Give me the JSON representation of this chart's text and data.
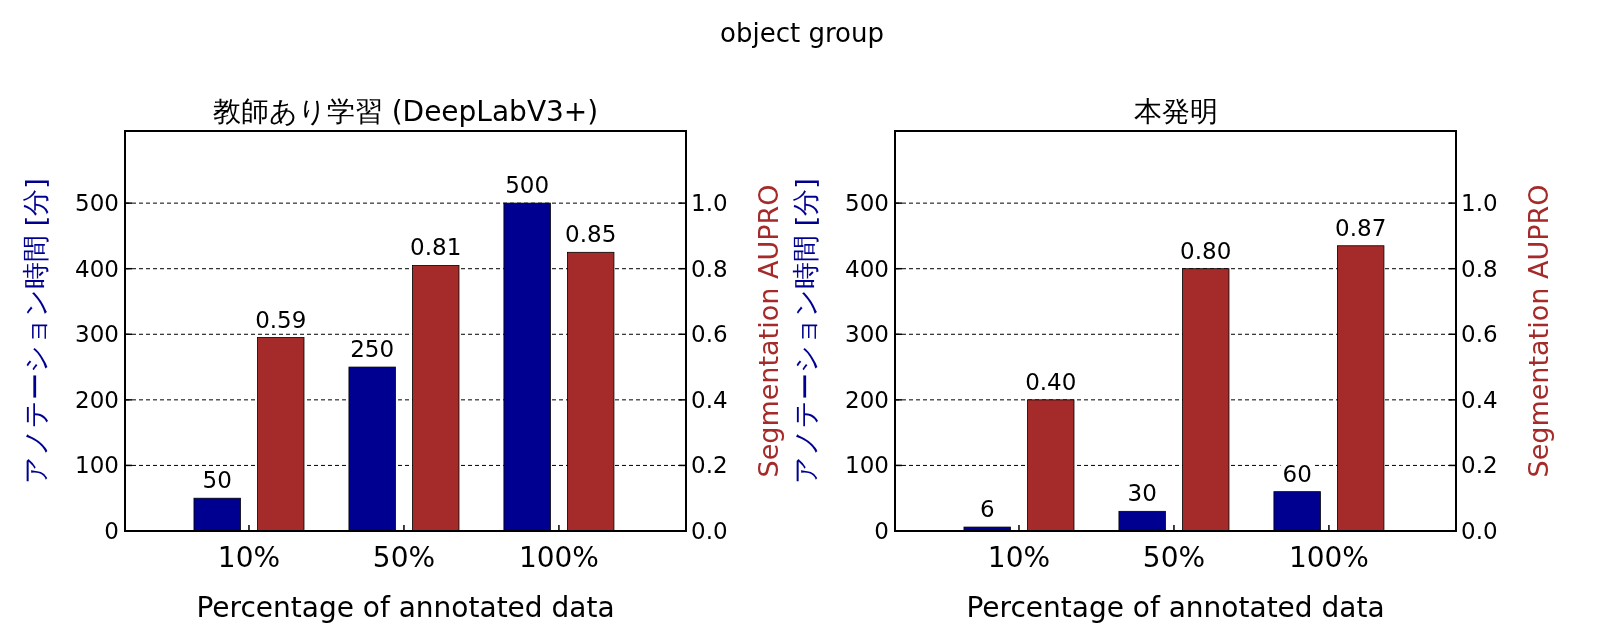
{
  "chart_data": [
    {
      "type": "bar",
      "title": "教師あり学習 (DeepLabV3+)",
      "annotations": [
        "object group"
      ],
      "xlabel": "Percentage of annotated data",
      "ylabel": "アノテーション時間 [分]",
      "y2label": "Segmentation AUPRO",
      "categories": [
        "10%",
        "50%",
        "100%"
      ],
      "series": [
        {
          "color": "#000090",
          "values": [
            50,
            250,
            500
          ],
          "value_labels": [
            "50",
            "250",
            "500"
          ]
        },
        {
          "color": "#a52a2a",
          "axis": "y2",
          "values": [
            0.59,
            0.81,
            0.85
          ],
          "value_labels": [
            "0.59",
            "0.81",
            "0.85"
          ]
        }
      ],
      "ylim": [
        0,
        610
      ],
      "yticks": [
        0,
        100,
        200,
        300,
        400,
        500
      ],
      "y2lim": [
        0,
        1.22
      ],
      "y2ticks": [
        {
          "value": 0,
          "label": "0.0"
        },
        {
          "value": 0.2,
          "label": "0.2"
        },
        {
          "value": 0.4,
          "label": "0.4"
        },
        {
          "value": 0.6,
          "label": "0.6"
        },
        {
          "value": 0.8,
          "label": "0.8"
        },
        {
          "value": 1,
          "label": "1.0"
        }
      ],
      "grid": "y"
    },
    {
      "type": "bar",
      "title": "本発明",
      "xlabel": "Percentage of annotated data",
      "ylabel": "アノテーション時間 [分]",
      "y2label": "Segmentation AUPRO",
      "categories": [
        "10%",
        "50%",
        "100%"
      ],
      "series": [
        {
          "color": "#000090",
          "values": [
            6,
            30,
            60
          ],
          "value_labels": [
            "6",
            "30",
            "60"
          ]
        },
        {
          "color": "#a52a2a",
          "axis": "y2",
          "values": [
            0.4,
            0.8,
            0.87
          ],
          "value_labels": [
            "0.40",
            "0.80",
            "0.87"
          ]
        }
      ],
      "ylim": [
        0,
        610
      ],
      "yticks": [
        0,
        100,
        200,
        300,
        400,
        500
      ],
      "y2lim": [
        0,
        1.22
      ],
      "y2ticks": [
        {
          "value": 0,
          "label": "0.0"
        },
        {
          "value": 0.2,
          "label": "0.2"
        },
        {
          "value": 0.4,
          "label": "0.4"
        },
        {
          "value": 0.6,
          "label": "0.6"
        },
        {
          "value": 0.8,
          "label": "0.8"
        },
        {
          "value": 1,
          "label": "1.0"
        }
      ],
      "grid": "y"
    }
  ]
}
